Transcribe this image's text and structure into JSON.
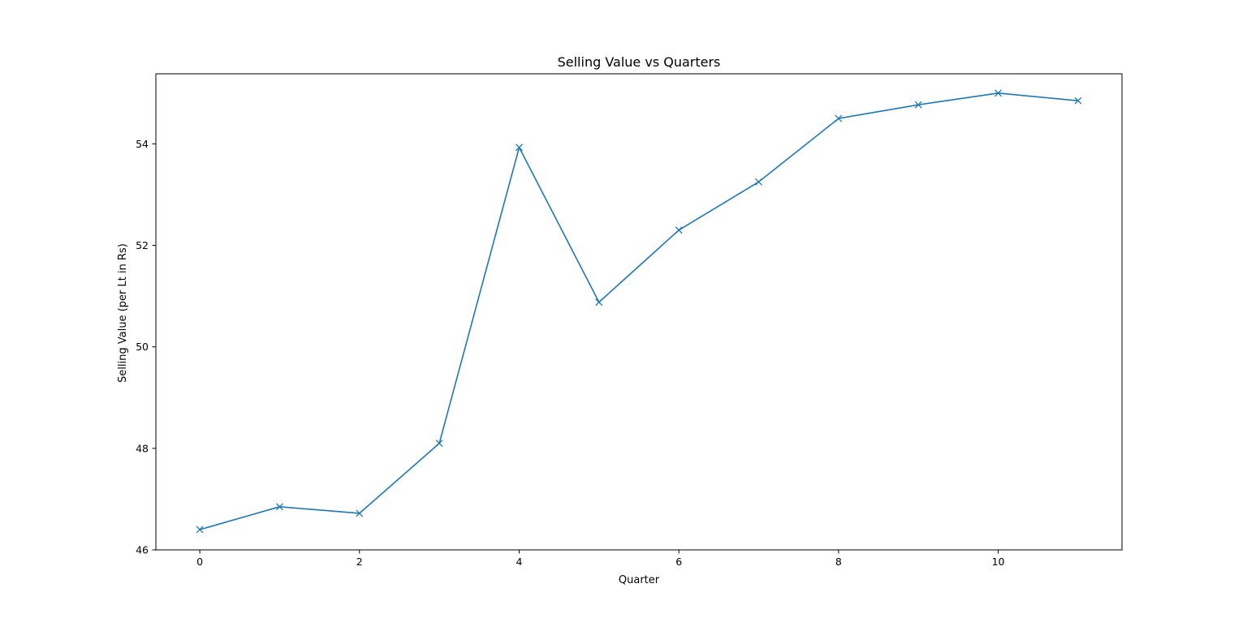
{
  "chart_data": {
    "type": "line",
    "title": "Selling Value vs Quarters",
    "xlabel": "Quarter",
    "ylabel": "Selling Value (per Lt in Rs)",
    "x": [
      0,
      1,
      2,
      3,
      4,
      5,
      6,
      7,
      8,
      9,
      10,
      11
    ],
    "series": [
      {
        "values": [
          46.4,
          46.85,
          46.72,
          48.1,
          53.93,
          50.88,
          52.3,
          53.25,
          54.5,
          54.77,
          55.0,
          54.85
        ],
        "color": "#1f77b4",
        "marker": "x"
      }
    ],
    "xticks": [
      0,
      2,
      4,
      6,
      8,
      10
    ],
    "yticks": [
      46,
      48,
      50,
      52,
      54
    ],
    "xlim": [
      -0.55,
      11.55
    ],
    "ylim": [
      46.0,
      55.38
    ],
    "grid": false,
    "legend": "none"
  }
}
